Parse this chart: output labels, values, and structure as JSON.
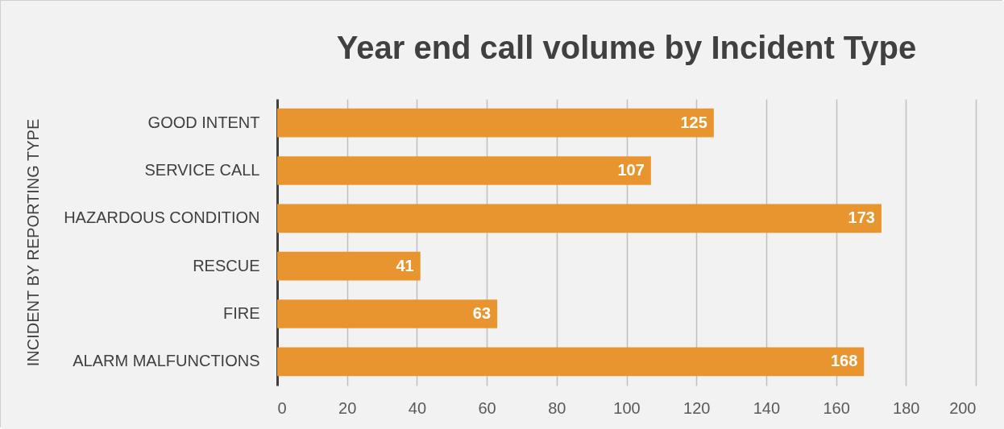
{
  "chart_data": {
    "type": "bar",
    "orientation": "horizontal",
    "title": "Year end  call volume by Incident Type",
    "ylabel": "INCIDENT BY REPORTING TYPE",
    "categories": [
      "GOOD INTENT",
      "SERVICE CALL",
      "HAZARDOUS CONDITION",
      "RESCUE",
      "FIRE",
      "ALARM MALFUNCTIONS"
    ],
    "values": [
      125,
      107,
      173,
      41,
      63,
      168
    ],
    "color": "#e8952f",
    "xlim": [
      0,
      200
    ],
    "xticks": [
      0,
      20,
      40,
      60,
      80,
      100,
      120,
      140,
      160,
      180,
      200
    ],
    "grid": "x",
    "data_labels": true
  }
}
